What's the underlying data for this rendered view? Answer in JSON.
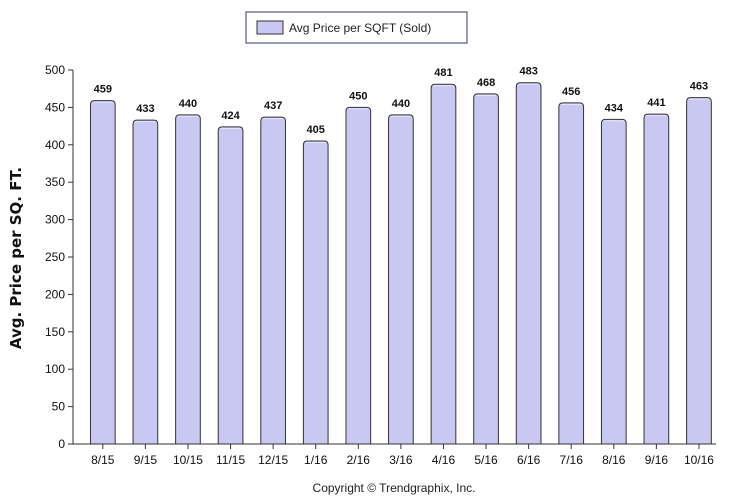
{
  "chart_data": {
    "type": "bar",
    "categories": [
      "8/15",
      "9/15",
      "10/15",
      "11/15",
      "12/15",
      "1/16",
      "2/16",
      "3/16",
      "4/16",
      "5/16",
      "6/16",
      "7/16",
      "8/16",
      "9/16",
      "10/16"
    ],
    "series": [
      {
        "name": "Avg Price per SQFT (Sold)",
        "values": [
          459,
          433,
          440,
          424,
          437,
          405,
          450,
          440,
          481,
          468,
          483,
          456,
          434,
          441,
          463
        ]
      }
    ],
    "title": "",
    "xlabel": "",
    "ylabel": "Avg. Price per SQ. FT.",
    "ylim": [
      0,
      500
    ],
    "yticks": [
      0,
      50,
      100,
      150,
      200,
      250,
      300,
      350,
      400,
      450,
      500
    ],
    "grid": false,
    "legend_position": "top-center",
    "show_value_labels": true,
    "colors": {
      "bar_fill": "#c8c8f2",
      "bar_stroke": "#333333",
      "legend_border": "#555a8a"
    }
  },
  "footer": {
    "copyright": "Copyright © Trendgraphix, Inc."
  }
}
